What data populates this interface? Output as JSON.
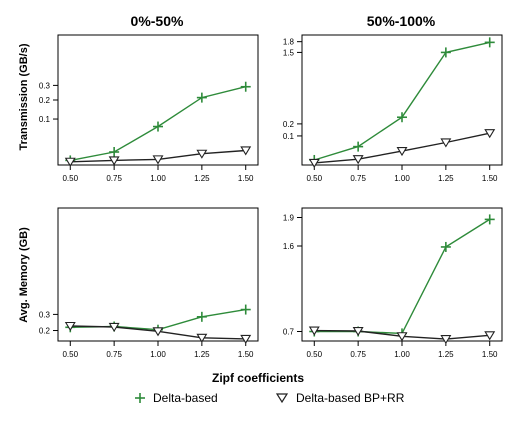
{
  "figure": {
    "columns": [
      "0%-50%",
      "50%-100%"
    ],
    "row_labels": [
      "Transmission (GB/s)",
      "Avg. Memory (GB)"
    ],
    "xlabel": "Zipf coefficients",
    "legend": [
      {
        "label": "Delta-based",
        "color": "#2e8b3a",
        "marker": "plus-icon"
      },
      {
        "label": "Delta-based BP+RR",
        "color": "#222222",
        "marker": "triangle-down-icon"
      }
    ]
  },
  "chart_data": [
    {
      "type": "line",
      "panel": "top-left",
      "title": "0%-50%",
      "ylabel": "Transmission (GB/s)",
      "xlabel": "",
      "x": [
        0.5,
        0.75,
        1.0,
        1.25,
        1.5
      ],
      "x_tick_labels": [
        "0.50",
        "0.75",
        "1.00",
        "1.25",
        "1.50"
      ],
      "y_scale": "sqrt",
      "y_ticks": [
        0.1,
        0.2,
        0.3
      ],
      "y_tick_labels": [
        "0.1",
        "0.2",
        "0.3"
      ],
      "ylim": [
        0,
        0.8
      ],
      "series": [
        {
          "name": "Delta-based",
          "values": [
            0.001,
            0.008,
            0.07,
            0.215,
            0.29
          ]
        },
        {
          "name": "Delta-based BP+RR",
          "values": [
            0.0005,
            0.001,
            0.0015,
            0.006,
            0.01
          ]
        }
      ]
    },
    {
      "type": "line",
      "panel": "top-right",
      "title": "50%-100%",
      "ylabel": "",
      "xlabel": "",
      "x": [
        0.5,
        0.75,
        1.0,
        1.25,
        1.5
      ],
      "x_tick_labels": [
        "0.50",
        "0.75",
        "1.00",
        "1.25",
        "1.50"
      ],
      "y_scale": "sqrt",
      "y_ticks": [
        0.1,
        0.2,
        1.5,
        1.8
      ],
      "y_tick_labels": [
        "0.1",
        "0.2",
        "1.5",
        "1.8"
      ],
      "ylim": [
        0,
        2.0
      ],
      "series": [
        {
          "name": "Delta-based",
          "values": [
            0.003,
            0.04,
            0.27,
            1.5,
            1.78
          ]
        },
        {
          "name": "Delta-based BP+RR",
          "values": [
            0.0005,
            0.004,
            0.023,
            0.06,
            0.12
          ]
        }
      ]
    },
    {
      "type": "line",
      "panel": "bottom-left",
      "title": "",
      "ylabel": "Avg. Memory (GB)",
      "xlabel": "Zipf coefficients",
      "x": [
        0.5,
        0.75,
        1.0,
        1.25,
        1.5
      ],
      "x_tick_labels": [
        "0.50",
        "0.75",
        "1.00",
        "1.25",
        "1.50"
      ],
      "y_scale": "linear",
      "y_ticks": [
        0.2,
        0.3
      ],
      "y_tick_labels": [
        "0.2",
        "0.3"
      ],
      "ylim": [
        0.135,
        0.96
      ],
      "series": [
        {
          "name": "Delta-based",
          "values": [
            0.22,
            0.225,
            0.205,
            0.285,
            0.33
          ]
        },
        {
          "name": "Delta-based BP+RR",
          "values": [
            0.228,
            0.222,
            0.195,
            0.155,
            0.148
          ]
        }
      ]
    },
    {
      "type": "line",
      "panel": "bottom-right",
      "title": "",
      "ylabel": "",
      "xlabel": "Zipf coefficients",
      "x": [
        0.5,
        0.75,
        1.0,
        1.25,
        1.5
      ],
      "x_tick_labels": [
        "0.50",
        "0.75",
        "1.00",
        "1.25",
        "1.50"
      ],
      "y_scale": "linear",
      "y_ticks": [
        0.7,
        1.6,
        1.9
      ],
      "y_tick_labels": [
        "0.7",
        "1.6",
        "1.9"
      ],
      "ylim": [
        0.6,
        2.0
      ],
      "series": [
        {
          "name": "Delta-based",
          "values": [
            0.7,
            0.7,
            0.68,
            1.59,
            1.88
          ]
        },
        {
          "name": "Delta-based BP+RR",
          "values": [
            0.71,
            0.705,
            0.65,
            0.62,
            0.66
          ]
        }
      ]
    }
  ]
}
